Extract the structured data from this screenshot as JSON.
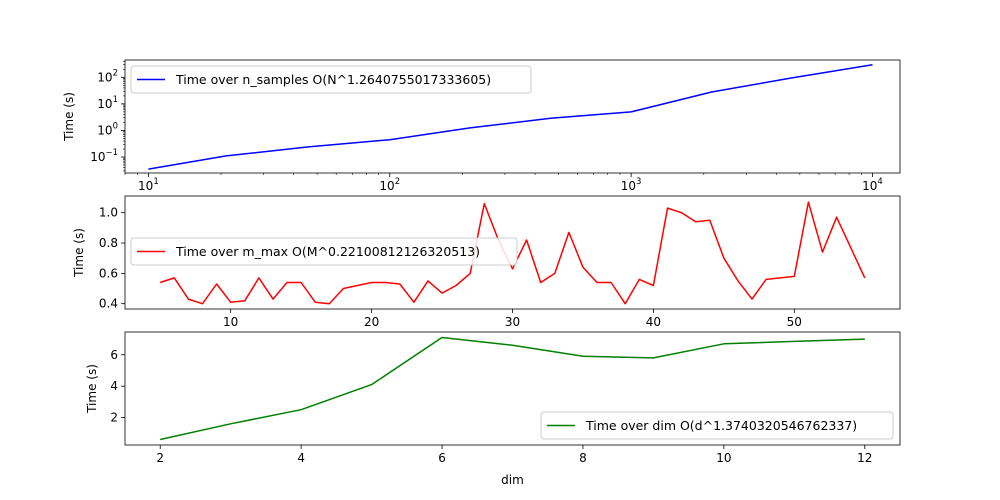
{
  "chart_data": [
    {
      "type": "line",
      "xscale": "log",
      "yscale": "log",
      "xlim": [
        8,
        13000
      ],
      "ylim": [
        0.025,
        450
      ],
      "xticks": [
        10,
        100,
        1000,
        10000
      ],
      "xtick_labels": [
        {
          "base": "10",
          "exp": "1"
        },
        {
          "base": "10",
          "exp": "2"
        },
        {
          "base": "10",
          "exp": "3"
        },
        {
          "base": "10",
          "exp": "4"
        }
      ],
      "yticks": [
        0.1,
        1,
        10,
        100
      ],
      "ytick_labels": [
        {
          "base": "10",
          "exp": "−1"
        },
        {
          "base": "10",
          "exp": "0"
        },
        {
          "base": "10",
          "exp": "1"
        },
        {
          "base": "10",
          "exp": "2"
        }
      ],
      "xlabel": "",
      "ylabel": "Time (s)",
      "legend_position": "upper-left",
      "series": [
        {
          "name": "Time over n_samples O(N^1.2640755017333605)",
          "color": "#0000ff",
          "x": [
            10,
            21,
            46,
            100,
            215,
            464,
            1000,
            2154,
            4641,
            10000
          ],
          "y": [
            0.035,
            0.11,
            0.24,
            0.45,
            1.25,
            2.9,
            5.0,
            28,
            95,
            300
          ]
        }
      ]
    },
    {
      "type": "line",
      "xscale": "linear",
      "yscale": "linear",
      "xlim": [
        2.5,
        57.5
      ],
      "ylim": [
        0.365,
        1.11
      ],
      "xticks": [
        10,
        20,
        30,
        40,
        50
      ],
      "xtick_labels": [
        "10",
        "20",
        "30",
        "40",
        "50"
      ],
      "yticks": [
        0.4,
        0.6,
        0.8,
        1.0
      ],
      "ytick_labels": [
        "0.4",
        "0.6",
        "0.8",
        "1.0"
      ],
      "xlabel": "",
      "ylabel": "Time (s)",
      "legend_position": "center-left",
      "series": [
        {
          "name": "Time over m_max O(M^0.22100812126320513)",
          "color": "#ff0000",
          "x": [
            5,
            6,
            7,
            8,
            9,
            10,
            11,
            12,
            13,
            14,
            15,
            16,
            17,
            18,
            19,
            20,
            21,
            22,
            23,
            24,
            25,
            26,
            27,
            28,
            29,
            30,
            31,
            32,
            33,
            34,
            35,
            36,
            37,
            38,
            39,
            40,
            41,
            42,
            43,
            44,
            45,
            46,
            47,
            48,
            49,
            50,
            51,
            52,
            53,
            54,
            55
          ],
          "y": [
            0.54,
            0.57,
            0.43,
            0.4,
            0.53,
            0.41,
            0.42,
            0.57,
            0.43,
            0.54,
            0.54,
            0.41,
            0.4,
            0.5,
            0.52,
            0.54,
            0.54,
            0.53,
            0.41,
            0.55,
            0.47,
            0.52,
            0.6,
            1.06,
            0.82,
            0.63,
            0.82,
            0.54,
            0.6,
            0.87,
            0.64,
            0.54,
            0.54,
            0.4,
            0.56,
            0.52,
            1.03,
            1.0,
            0.94,
            0.95,
            0.7,
            0.55,
            0.43,
            0.56,
            0.57,
            0.58,
            1.07,
            0.74,
            0.97,
            0.77,
            0.57
          ]
        }
      ]
    },
    {
      "type": "line",
      "xscale": "linear",
      "yscale": "linear",
      "xlim": [
        1.5,
        12.5
      ],
      "ylim": [
        0.25,
        7.45
      ],
      "xticks": [
        2,
        4,
        6,
        8,
        10,
        12
      ],
      "xtick_labels": [
        "2",
        "4",
        "6",
        "8",
        "10",
        "12"
      ],
      "yticks": [
        2,
        4,
        6
      ],
      "ytick_labels": [
        "2",
        "4",
        "6"
      ],
      "xlabel": "dim",
      "ylabel": "Time (s)",
      "legend_position": "lower-right",
      "series": [
        {
          "name": "Time over dim O(d^1.3740320546762337)",
          "color": "#008000",
          "x": [
            2,
            3,
            4,
            5,
            6,
            7,
            8,
            9,
            10,
            11,
            12
          ],
          "y": [
            0.6,
            1.6,
            2.5,
            4.1,
            7.1,
            6.6,
            5.9,
            5.8,
            6.7,
            6.85,
            7.0
          ]
        }
      ]
    }
  ]
}
